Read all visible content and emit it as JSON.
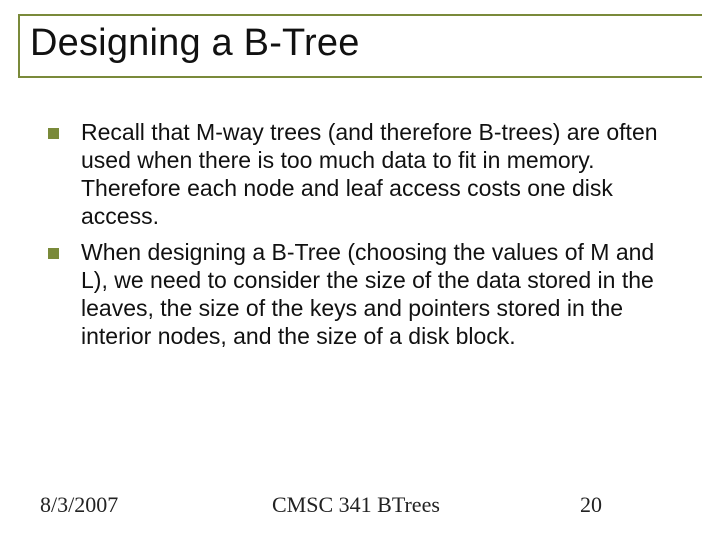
{
  "colors": {
    "accent": "#7a8a3a",
    "text": "#111111",
    "footer_text": "#222222",
    "background": "#ffffff"
  },
  "typography": {
    "title_font": "Arial",
    "title_fontsize_pt": 28,
    "body_font": "Arial",
    "body_fontsize_pt": 17,
    "footer_font": "Times New Roman",
    "footer_fontsize_pt": 16
  },
  "title": "Designing a B-Tree",
  "bullets": [
    "Recall that M-way trees (and therefore B-trees) are often used when there is too much data to fit in memory.  Therefore each node and leaf access costs one disk access.",
    "When designing a B-Tree (choosing the values of M and L), we need to consider the size of the data stored in the leaves, the size of the keys and pointers stored in the interior nodes, and the size of a disk block."
  ],
  "footer": {
    "date": "8/3/2007",
    "center": "CMSC 341 BTrees",
    "page": "20"
  }
}
